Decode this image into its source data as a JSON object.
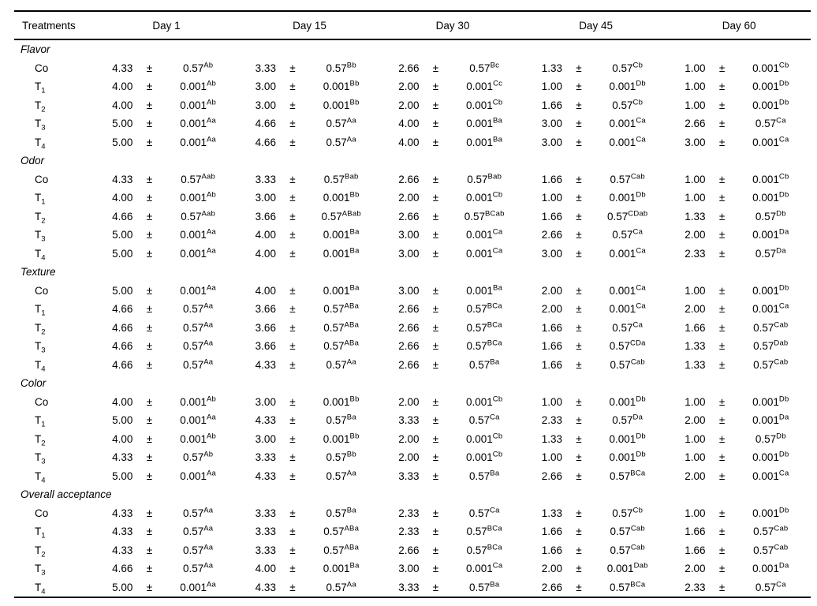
{
  "table": {
    "col_header": "Treatments",
    "day_headers": [
      "Day 1",
      "Day 15",
      "Day 30",
      "Day 45",
      "Day 60"
    ],
    "pm_symbol": "±",
    "text_color": "#000000",
    "background_color": "#ffffff",
    "sections": [
      {
        "name": "Flavor",
        "rows": [
          {
            "t": "Co",
            "sub": "",
            "cells": [
              {
                "v": "4.33",
                "sd": "0.57",
                "sup": "Ab"
              },
              {
                "v": "3.33",
                "sd": "0.57",
                "sup": "Bb"
              },
              {
                "v": "2.66",
                "sd": "0.57",
                "sup": "Bc"
              },
              {
                "v": "1.33",
                "sd": "0.57",
                "sup": "Cb"
              },
              {
                "v": "1.00",
                "sd": "0.001",
                "sup": "Cb"
              }
            ]
          },
          {
            "t": "T",
            "sub": "1",
            "cells": [
              {
                "v": "4.00",
                "sd": "0.001",
                "sup": "Ab"
              },
              {
                "v": "3.00",
                "sd": "0.001",
                "sup": "Bb"
              },
              {
                "v": "2.00",
                "sd": "0.001",
                "sup": "Cc"
              },
              {
                "v": "1.00",
                "sd": "0.001",
                "sup": "Db"
              },
              {
                "v": "1.00",
                "sd": "0.001",
                "sup": "Db"
              }
            ]
          },
          {
            "t": "T",
            "sub": "2",
            "cells": [
              {
                "v": "4.00",
                "sd": "0.001",
                "sup": "Ab"
              },
              {
                "v": "3.00",
                "sd": "0.001",
                "sup": "Bb"
              },
              {
                "v": "2.00",
                "sd": "0.001",
                "sup": "Cb"
              },
              {
                "v": "1.66",
                "sd": "0.57",
                "sup": "Cb"
              },
              {
                "v": "1.00",
                "sd": "0.001",
                "sup": "Db"
              }
            ]
          },
          {
            "t": "T",
            "sub": "3",
            "cells": [
              {
                "v": "5.00",
                "sd": "0.001",
                "sup": "Aa"
              },
              {
                "v": "4.66",
                "sd": "0.57",
                "sup": "Aa"
              },
              {
                "v": "4.00",
                "sd": "0.001",
                "sup": "Ba"
              },
              {
                "v": "3.00",
                "sd": "0.001",
                "sup": "Ca"
              },
              {
                "v": "2.66",
                "sd": "0.57",
                "sup": "Ca"
              }
            ]
          },
          {
            "t": "T",
            "sub": "4",
            "cells": [
              {
                "v": "5.00",
                "sd": "0.001",
                "sup": "Aa"
              },
              {
                "v": "4.66",
                "sd": "0.57",
                "sup": "Aa"
              },
              {
                "v": "4.00",
                "sd": "0.001",
                "sup": "Ba"
              },
              {
                "v": "3.00",
                "sd": "0.001",
                "sup": "Ca"
              },
              {
                "v": "3.00",
                "sd": "0.001",
                "sup": "Ca"
              }
            ]
          }
        ]
      },
      {
        "name": "Odor",
        "rows": [
          {
            "t": "Co",
            "sub": "",
            "cells": [
              {
                "v": "4.33",
                "sd": "0.57",
                "sup": "Aab"
              },
              {
                "v": "3.33",
                "sd": "0.57",
                "sup": "Bab"
              },
              {
                "v": "2.66",
                "sd": "0.57",
                "sup": "Bab"
              },
              {
                "v": "1.66",
                "sd": "0.57",
                "sup": "Cab"
              },
              {
                "v": "1.00",
                "sd": "0.001",
                "sup": "Cb"
              }
            ]
          },
          {
            "t": "T",
            "sub": "1",
            "cells": [
              {
                "v": "4.00",
                "sd": "0.001",
                "sup": "Ab"
              },
              {
                "v": "3.00",
                "sd": "0.001",
                "sup": "Bb"
              },
              {
                "v": "2.00",
                "sd": "0.001",
                "sup": "Cb"
              },
              {
                "v": "1.00",
                "sd": "0.001",
                "sup": "Db"
              },
              {
                "v": "1.00",
                "sd": "0.001",
                "sup": "Db"
              }
            ]
          },
          {
            "t": "T",
            "sub": "2",
            "cells": [
              {
                "v": "4.66",
                "sd": "0.57",
                "sup": "Aab"
              },
              {
                "v": "3.66",
                "sd": "0.57",
                "sup": "ABab"
              },
              {
                "v": "2.66",
                "sd": "0.57",
                "sup": "BCab"
              },
              {
                "v": "1.66",
                "sd": "0.57",
                "sup": "CDab"
              },
              {
                "v": "1.33",
                "sd": "0.57",
                "sup": "Db"
              }
            ]
          },
          {
            "t": "T",
            "sub": "3",
            "cells": [
              {
                "v": "5.00",
                "sd": "0.001",
                "sup": "Aa"
              },
              {
                "v": "4.00",
                "sd": "0.001",
                "sup": "Ba"
              },
              {
                "v": "3.00",
                "sd": "0.001",
                "sup": "Ca"
              },
              {
                "v": "2.66",
                "sd": "0.57",
                "sup": "Ca"
              },
              {
                "v": "2.00",
                "sd": "0.001",
                "sup": "Da"
              }
            ]
          },
          {
            "t": "T",
            "sub": "4",
            "cells": [
              {
                "v": "5.00",
                "sd": "0.001",
                "sup": "Aa"
              },
              {
                "v": "4.00",
                "sd": "0.001",
                "sup": "Ba"
              },
              {
                "v": "3.00",
                "sd": "0.001",
                "sup": "Ca"
              },
              {
                "v": "3.00",
                "sd": "0.001",
                "sup": "Ca"
              },
              {
                "v": "2.33",
                "sd": "0.57",
                "sup": "Da"
              }
            ]
          }
        ]
      },
      {
        "name": "Texture",
        "rows": [
          {
            "t": "Co",
            "sub": "",
            "cells": [
              {
                "v": "5.00",
                "sd": "0.001",
                "sup": "Aa"
              },
              {
                "v": "4.00",
                "sd": "0.001",
                "sup": "Ba"
              },
              {
                "v": "3.00",
                "sd": "0.001",
                "sup": "Ba"
              },
              {
                "v": "2.00",
                "sd": "0.001",
                "sup": "Ca"
              },
              {
                "v": "1.00",
                "sd": "0.001",
                "sup": "Db"
              }
            ]
          },
          {
            "t": "T",
            "sub": "1",
            "cells": [
              {
                "v": "4.66",
                "sd": "0.57",
                "sup": "Aa"
              },
              {
                "v": "3.66",
                "sd": "0.57",
                "sup": "ABa"
              },
              {
                "v": "2.66",
                "sd": "0.57",
                "sup": "BCa"
              },
              {
                "v": "2.00",
                "sd": "0.001",
                "sup": "Ca"
              },
              {
                "v": "2.00",
                "sd": "0.001",
                "sup": "Ca"
              }
            ]
          },
          {
            "t": "T",
            "sub": "2",
            "cells": [
              {
                "v": "4.66",
                "sd": "0.57",
                "sup": "Aa"
              },
              {
                "v": "3.66",
                "sd": "0.57",
                "sup": "ABa"
              },
              {
                "v": "2.66",
                "sd": "0.57",
                "sup": "BCa"
              },
              {
                "v": "1.66",
                "sd": "0.57",
                "sup": "Ca"
              },
              {
                "v": "1.66",
                "sd": "0.57",
                "sup": "Cab"
              }
            ]
          },
          {
            "t": "T",
            "sub": "3",
            "cells": [
              {
                "v": "4.66",
                "sd": "0.57",
                "sup": "Aa"
              },
              {
                "v": "3.66",
                "sd": "0.57",
                "sup": "ABa"
              },
              {
                "v": "2.66",
                "sd": "0.57",
                "sup": "BCa"
              },
              {
                "v": "1.66",
                "sd": "0.57",
                "sup": "CDa"
              },
              {
                "v": "1.33",
                "sd": "0.57",
                "sup": "Dab"
              }
            ]
          },
          {
            "t": "T",
            "sub": "4",
            "cells": [
              {
                "v": "4.66",
                "sd": "0.57",
                "sup": "Aa"
              },
              {
                "v": "4.33",
                "sd": "0.57",
                "sup": "Aa"
              },
              {
                "v": "2.66",
                "sd": "0.57",
                "sup": "Ba"
              },
              {
                "v": "1.66",
                "sd": "0.57",
                "sup": "Cab"
              },
              {
                "v": "1.33",
                "sd": "0.57",
                "sup": "Cab"
              }
            ]
          }
        ]
      },
      {
        "name": "Color",
        "rows": [
          {
            "t": "Co",
            "sub": "",
            "cells": [
              {
                "v": "4.00",
                "sd": "0.001",
                "sup": "Ab"
              },
              {
                "v": "3.00",
                "sd": "0.001",
                "sup": "Bb"
              },
              {
                "v": "2.00",
                "sd": "0.001",
                "sup": "Cb"
              },
              {
                "v": "1.00",
                "sd": "0.001",
                "sup": "Db"
              },
              {
                "v": "1.00",
                "sd": "0.001",
                "sup": "Db"
              }
            ]
          },
          {
            "t": "T",
            "sub": "1",
            "cells": [
              {
                "v": "5.00",
                "sd": "0.001",
                "sup": "Aa"
              },
              {
                "v": "4.33",
                "sd": "0.57",
                "sup": "Ba"
              },
              {
                "v": "3.33",
                "sd": "0.57",
                "sup": "Ca"
              },
              {
                "v": "2.33",
                "sd": "0.57",
                "sup": "Da"
              },
              {
                "v": "2.00",
                "sd": "0.001",
                "sup": "Da"
              }
            ]
          },
          {
            "t": "T",
            "sub": "2",
            "cells": [
              {
                "v": "4.00",
                "sd": "0.001",
                "sup": "Ab"
              },
              {
                "v": "3.00",
                "sd": "0.001",
                "sup": "Bb"
              },
              {
                "v": "2.00",
                "sd": "0.001",
                "sup": "Cb"
              },
              {
                "v": "1.33",
                "sd": "0.001",
                "sup": "Db"
              },
              {
                "v": "1.00",
                "sd": "0.57",
                "sup": "Db"
              }
            ]
          },
          {
            "t": "T",
            "sub": "3",
            "cells": [
              {
                "v": "4.33",
                "sd": "0.57",
                "sup": "Ab"
              },
              {
                "v": "3.33",
                "sd": "0.57",
                "sup": "Bb"
              },
              {
                "v": "2.00",
                "sd": "0.001",
                "sup": "Cb"
              },
              {
                "v": "1.00",
                "sd": "0.001",
                "sup": "Db"
              },
              {
                "v": "1.00",
                "sd": "0.001",
                "sup": "Db"
              }
            ]
          },
          {
            "t": "T",
            "sub": "4",
            "cells": [
              {
                "v": "5.00",
                "sd": "0.001",
                "sup": "Aa"
              },
              {
                "v": "4.33",
                "sd": "0.57",
                "sup": "Aa"
              },
              {
                "v": "3.33",
                "sd": "0.57",
                "sup": "Ba"
              },
              {
                "v": "2.66",
                "sd": "0.57",
                "sup": "BCa"
              },
              {
                "v": "2.00",
                "sd": "0.001",
                "sup": "Ca"
              }
            ]
          }
        ]
      },
      {
        "name": "Overall acceptance",
        "rows": [
          {
            "t": "Co",
            "sub": "",
            "cells": [
              {
                "v": "4.33",
                "sd": "0.57",
                "sup": "Aa"
              },
              {
                "v": "3.33",
                "sd": "0.57",
                "sup": "Ba"
              },
              {
                "v": "2.33",
                "sd": "0.57",
                "sup": "Ca"
              },
              {
                "v": "1.33",
                "sd": "0.57",
                "sup": "Cb"
              },
              {
                "v": "1.00",
                "sd": "0.001",
                "sup": "Db"
              }
            ]
          },
          {
            "t": "T",
            "sub": "1",
            "cells": [
              {
                "v": "4.33",
                "sd": "0.57",
                "sup": "Aa"
              },
              {
                "v": "3.33",
                "sd": "0.57",
                "sup": "ABa"
              },
              {
                "v": "2.33",
                "sd": "0.57",
                "sup": "BCa"
              },
              {
                "v": "1.66",
                "sd": "0.57",
                "sup": "Cab"
              },
              {
                "v": "1.66",
                "sd": "0.57",
                "sup": "Cab"
              }
            ]
          },
          {
            "t": "T",
            "sub": "2",
            "cells": [
              {
                "v": "4.33",
                "sd": "0.57",
                "sup": "Aa"
              },
              {
                "v": "3.33",
                "sd": "0.57",
                "sup": "ABa"
              },
              {
                "v": "2.66",
                "sd": "0.57",
                "sup": "BCa"
              },
              {
                "v": "1.66",
                "sd": "0.57",
                "sup": "Cab"
              },
              {
                "v": "1.66",
                "sd": "0.57",
                "sup": "Cab"
              }
            ]
          },
          {
            "t": "T",
            "sub": "3",
            "cells": [
              {
                "v": "4.66",
                "sd": "0.57",
                "sup": "Aa"
              },
              {
                "v": "4.00",
                "sd": "0.001",
                "sup": "Ba"
              },
              {
                "v": "3.00",
                "sd": "0.001",
                "sup": "Ca"
              },
              {
                "v": "2.00",
                "sd": "0.001",
                "sup": "Dab"
              },
              {
                "v": "2.00",
                "sd": "0.001",
                "sup": "Da"
              }
            ]
          },
          {
            "t": "T",
            "sub": "4",
            "cells": [
              {
                "v": "5.00",
                "sd": "0.001",
                "sup": "Aa"
              },
              {
                "v": "4.33",
                "sd": "0.57",
                "sup": "Aa"
              },
              {
                "v": "3.33",
                "sd": "0.57",
                "sup": "Ba"
              },
              {
                "v": "2.66",
                "sd": "0.57",
                "sup": "BCa"
              },
              {
                "v": "2.33",
                "sd": "0.57",
                "sup": "Ca"
              }
            ]
          }
        ]
      }
    ]
  }
}
